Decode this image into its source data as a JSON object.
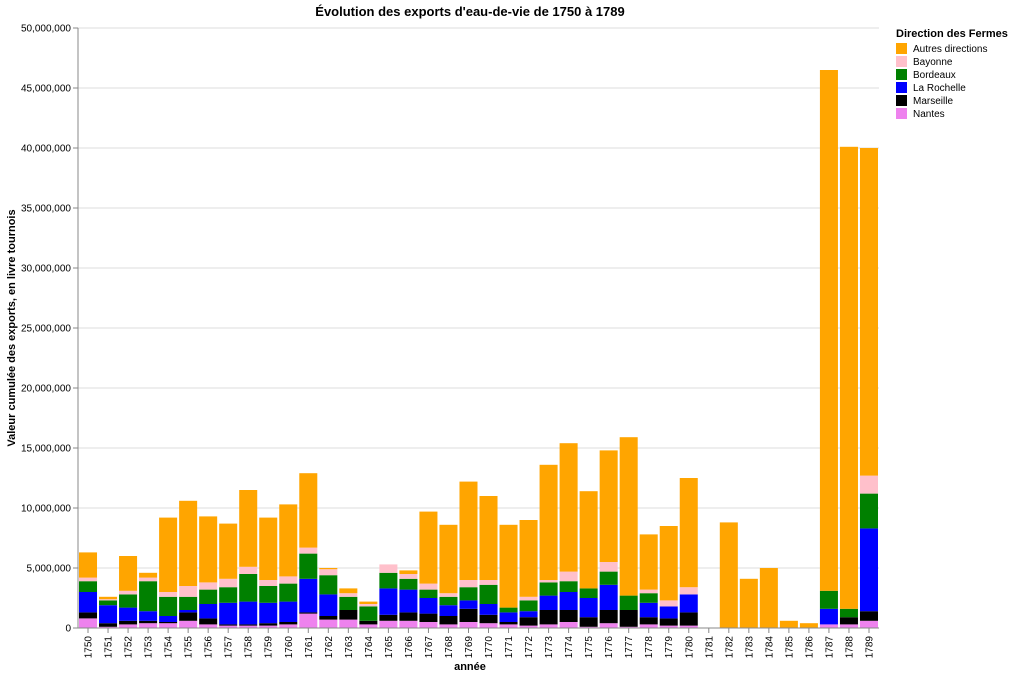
{
  "chart_data": {
    "type": "bar",
    "stacked": true,
    "title": "Évolution des exports d'eau-de-vie de 1750 à 1789",
    "xlabel": "année",
    "ylabel": "Valeur cumulée des exports, en livre tournois",
    "ylim": [
      0,
      50000000
    ],
    "yticks": [
      "0",
      "5,000,000",
      "10,000,000",
      "15,000,000",
      "20,000,000",
      "25,000,000",
      "30,000,000",
      "35,000,000",
      "40,000,000",
      "45,000,000",
      "50,000,000"
    ],
    "grid": true,
    "legend_title": "Direction des Fermes",
    "legend_position": "top-right",
    "categories": [
      "1750",
      "1751",
      "1752",
      "1753",
      "1754",
      "1755",
      "1756",
      "1757",
      "1758",
      "1759",
      "1760",
      "1761",
      "1762",
      "1763",
      "1764",
      "1765",
      "1766",
      "1767",
      "1768",
      "1769",
      "1770",
      "1771",
      "1772",
      "1773",
      "1774",
      "1775",
      "1776",
      "1777",
      "1778",
      "1779",
      "1780",
      "1781",
      "1782",
      "1783",
      "1784",
      "1785",
      "1786",
      "1787",
      "1788",
      "1789"
    ],
    "series": [
      {
        "name": "Nantes",
        "color": "#ee82ee",
        "values": [
          800000,
          100000,
          300000,
          400000,
          400000,
          600000,
          300000,
          200000,
          200000,
          200000,
          300000,
          1200000,
          700000,
          700000,
          300000,
          600000,
          600000,
          500000,
          300000,
          500000,
          400000,
          300000,
          200000,
          300000,
          500000,
          100000,
          400000,
          100000,
          300000,
          200000,
          200000,
          0,
          0,
          0,
          0,
          0,
          0,
          300000,
          300000,
          600000
        ]
      },
      {
        "name": "Marseille",
        "color": "#000000",
        "values": [
          500000,
          300000,
          300000,
          200000,
          100000,
          700000,
          500000,
          100000,
          100000,
          200000,
          200000,
          100000,
          300000,
          800000,
          300000,
          500000,
          700000,
          700000,
          700000,
          1100000,
          700000,
          200000,
          700000,
          1200000,
          1000000,
          800000,
          1100000,
          1400000,
          600000,
          600000,
          1100000,
          0,
          0,
          0,
          0,
          0,
          0,
          0,
          600000,
          800000
        ]
      },
      {
        "name": "La Rochelle",
        "color": "#0000ff",
        "values": [
          1700000,
          1500000,
          1100000,
          800000,
          500000,
          200000,
          1200000,
          1800000,
          1900000,
          1700000,
          1700000,
          2800000,
          1800000,
          0,
          0,
          2200000,
          1900000,
          1300000,
          900000,
          700000,
          900000,
          800000,
          500000,
          1200000,
          1500000,
          1600000,
          2100000,
          0,
          1200000,
          1000000,
          1500000,
          0,
          0,
          0,
          0,
          0,
          0,
          1300000,
          0,
          6900000
        ]
      },
      {
        "name": "Bordeaux",
        "color": "#008000",
        "values": [
          900000,
          400000,
          1100000,
          2500000,
          1600000,
          1100000,
          1200000,
          1300000,
          2300000,
          1400000,
          1500000,
          2100000,
          1600000,
          1100000,
          1200000,
          1300000,
          900000,
          700000,
          700000,
          1100000,
          1600000,
          400000,
          900000,
          1100000,
          900000,
          800000,
          1100000,
          1200000,
          800000,
          0,
          0,
          0,
          0,
          0,
          0,
          0,
          0,
          1500000,
          700000,
          2900000
        ]
      },
      {
        "name": "Bayonne",
        "color": "#ffc0cb",
        "values": [
          300000,
          100000,
          300000,
          300000,
          400000,
          900000,
          600000,
          700000,
          600000,
          500000,
          600000,
          500000,
          500000,
          300000,
          200000,
          700000,
          400000,
          500000,
          300000,
          600000,
          400000,
          0,
          300000,
          200000,
          800000,
          0,
          800000,
          0,
          300000,
          500000,
          600000,
          0,
          0,
          0,
          0,
          0,
          0,
          0,
          0,
          1500000
        ]
      },
      {
        "name": "Autres directions",
        "color": "#ffa500",
        "values": [
          2100000,
          200000,
          2900000,
          400000,
          6200000,
          7100000,
          5500000,
          4600000,
          6400000,
          5200000,
          6000000,
          6200000,
          100000,
          400000,
          200000,
          0,
          300000,
          6000000,
          5700000,
          8200000,
          7000000,
          6900000,
          6400000,
          9600000,
          10700000,
          8100000,
          9300000,
          13200000,
          4600000,
          6200000,
          9100000,
          0,
          8800000,
          4100000,
          5000000,
          600000,
          400000,
          43400000,
          38500000,
          27300000
        ]
      }
    ]
  }
}
